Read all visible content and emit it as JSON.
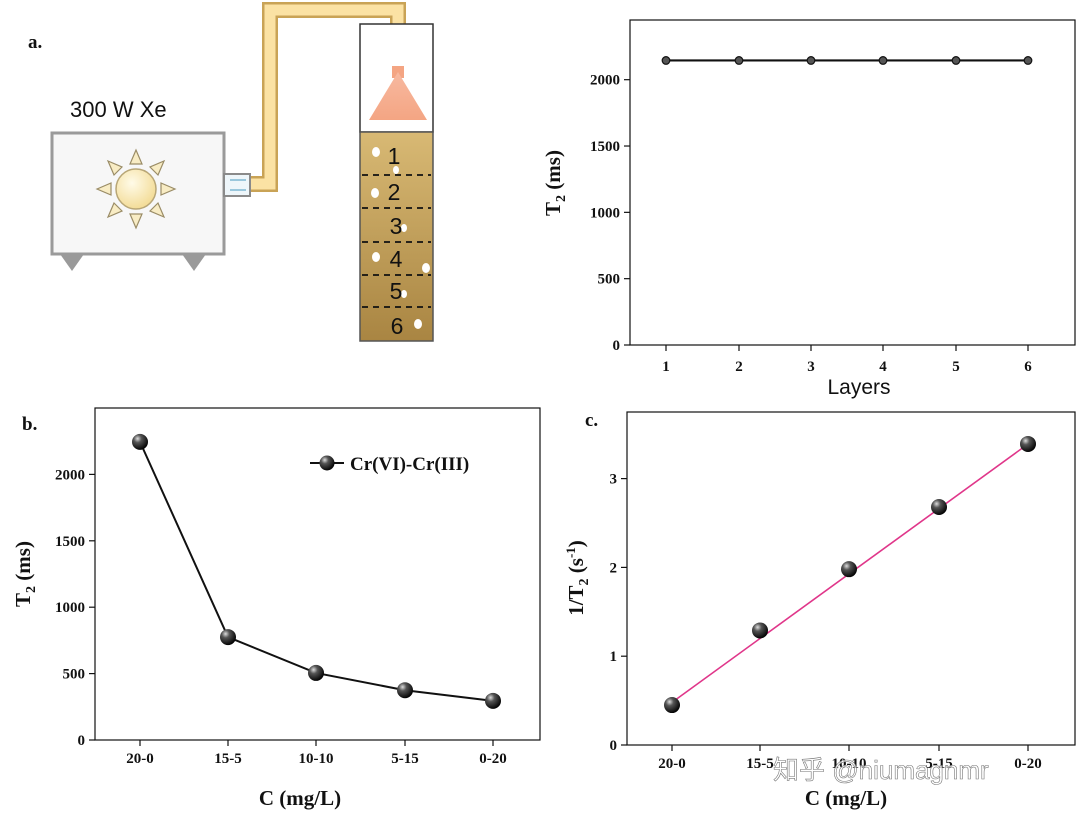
{
  "panel_labels": {
    "a": "a.",
    "b": "b.",
    "c": "c."
  },
  "schematic": {
    "lamp_label": "300 W Xe",
    "layers": [
      "1",
      "2",
      "3",
      "4",
      "5",
      "6"
    ]
  },
  "watermark": "知乎 @niumagnmr",
  "chart_data": [
    {
      "id": "chart_a",
      "type": "line",
      "title": "",
      "xlabel": "Layers",
      "ylabel": "T",
      "ylabel_sub": "2",
      "ylabel_unit": " (ms)",
      "x": [
        1,
        2,
        3,
        4,
        5,
        6
      ],
      "series": [
        {
          "name": "T2",
          "values": [
            2145,
            2145,
            2145,
            2145,
            2145,
            2145
          ]
        }
      ],
      "xlim": [
        0.5,
        6.7
      ],
      "ylim": [
        0,
        2450
      ],
      "xticks": [
        1,
        2,
        3,
        4,
        5,
        6
      ],
      "yticks": [
        0,
        500,
        1000,
        1500,
        2000
      ],
      "grid": false
    },
    {
      "id": "chart_b",
      "type": "line",
      "title": "",
      "xlabel": "C (mg/L)",
      "ylabel": "T",
      "ylabel_sub": "2",
      "ylabel_unit": " (ms)",
      "categories": [
        "20-0",
        "15-5",
        "10-10",
        "5-15",
        "0-20"
      ],
      "series": [
        {
          "name": "Cr(VI)-Cr(III)",
          "values": [
            2245,
            775,
            505,
            375,
            295
          ]
        }
      ],
      "ylim": [
        0,
        2500
      ],
      "yticks": [
        0,
        500,
        1000,
        1500,
        2000
      ],
      "legend": "top-right",
      "grid": false
    },
    {
      "id": "chart_c",
      "type": "scatter",
      "title": "",
      "xlabel": "C (mg/L)",
      "ylabel": "1/T",
      "ylabel_sub": "2",
      "ylabel_unit": " (s",
      "ylabel_sup": "-1",
      "ylabel_end": ")",
      "categories": [
        "20-0",
        "15-5",
        "10-10",
        "5-15",
        "0-20"
      ],
      "series": [
        {
          "name": "1/T2",
          "values": [
            0.45,
            1.29,
            1.98,
            2.68,
            3.39
          ]
        }
      ],
      "fit_line": {
        "color": "#e0368a",
        "start": 0.48,
        "end": 3.39
      },
      "ylim": [
        0,
        3.75
      ],
      "yticks": [
        0,
        1,
        2,
        3
      ],
      "grid": false
    }
  ]
}
